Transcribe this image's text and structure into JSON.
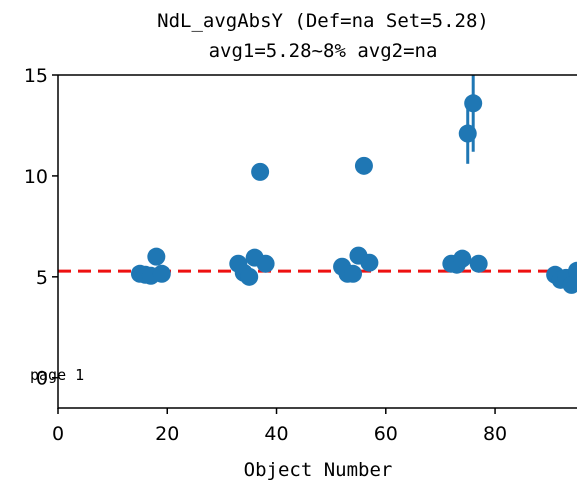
{
  "chart_data": {
    "type": "scatter",
    "title_line1": "NdL_avgAbsY (Def=na Set=5.28)",
    "title_line2": "avg1=5.28~8% avg2=na",
    "xlabel": "Object Number",
    "ylabel": "",
    "xlim": [
      0,
      95
    ],
    "ylim": [
      -1.5,
      15
    ],
    "xticks": [
      0,
      20,
      40,
      60,
      80
    ],
    "yticks": [
      0,
      5,
      10,
      15
    ],
    "grid": false,
    "reference_line": {
      "y": 5.28,
      "color": "#ee1111",
      "style": "dashed"
    },
    "annotation": "page 1",
    "marker_color": "#1f77b4",
    "points": [
      {
        "x": 15,
        "y": 5.15
      },
      {
        "x": 16,
        "y": 5.1
      },
      {
        "x": 17,
        "y": 5.05
      },
      {
        "x": 18,
        "y": 6.0
      },
      {
        "x": 19,
        "y": 5.15
      },
      {
        "x": 33,
        "y": 5.65
      },
      {
        "x": 34,
        "y": 5.2
      },
      {
        "x": 35,
        "y": 5.0
      },
      {
        "x": 36,
        "y": 5.95
      },
      {
        "x": 37,
        "y": 10.2
      },
      {
        "x": 38,
        "y": 5.65
      },
      {
        "x": 52,
        "y": 5.5
      },
      {
        "x": 53,
        "y": 5.15
      },
      {
        "x": 54,
        "y": 5.15
      },
      {
        "x": 55,
        "y": 6.05
      },
      {
        "x": 56,
        "y": 10.5
      },
      {
        "x": 57,
        "y": 5.7
      },
      {
        "x": 72,
        "y": 5.65
      },
      {
        "x": 73,
        "y": 5.6
      },
      {
        "x": 74,
        "y": 5.9
      },
      {
        "x": 75,
        "y": 12.1,
        "err": 1.5
      },
      {
        "x": 76,
        "y": 13.6,
        "err": 2.4
      },
      {
        "x": 77,
        "y": 5.65
      },
      {
        "x": 91,
        "y": 5.1
      },
      {
        "x": 92,
        "y": 4.85
      },
      {
        "x": 93,
        "y": 4.95
      },
      {
        "x": 94,
        "y": 4.6
      },
      {
        "x": 95,
        "y": 5.3
      }
    ]
  }
}
